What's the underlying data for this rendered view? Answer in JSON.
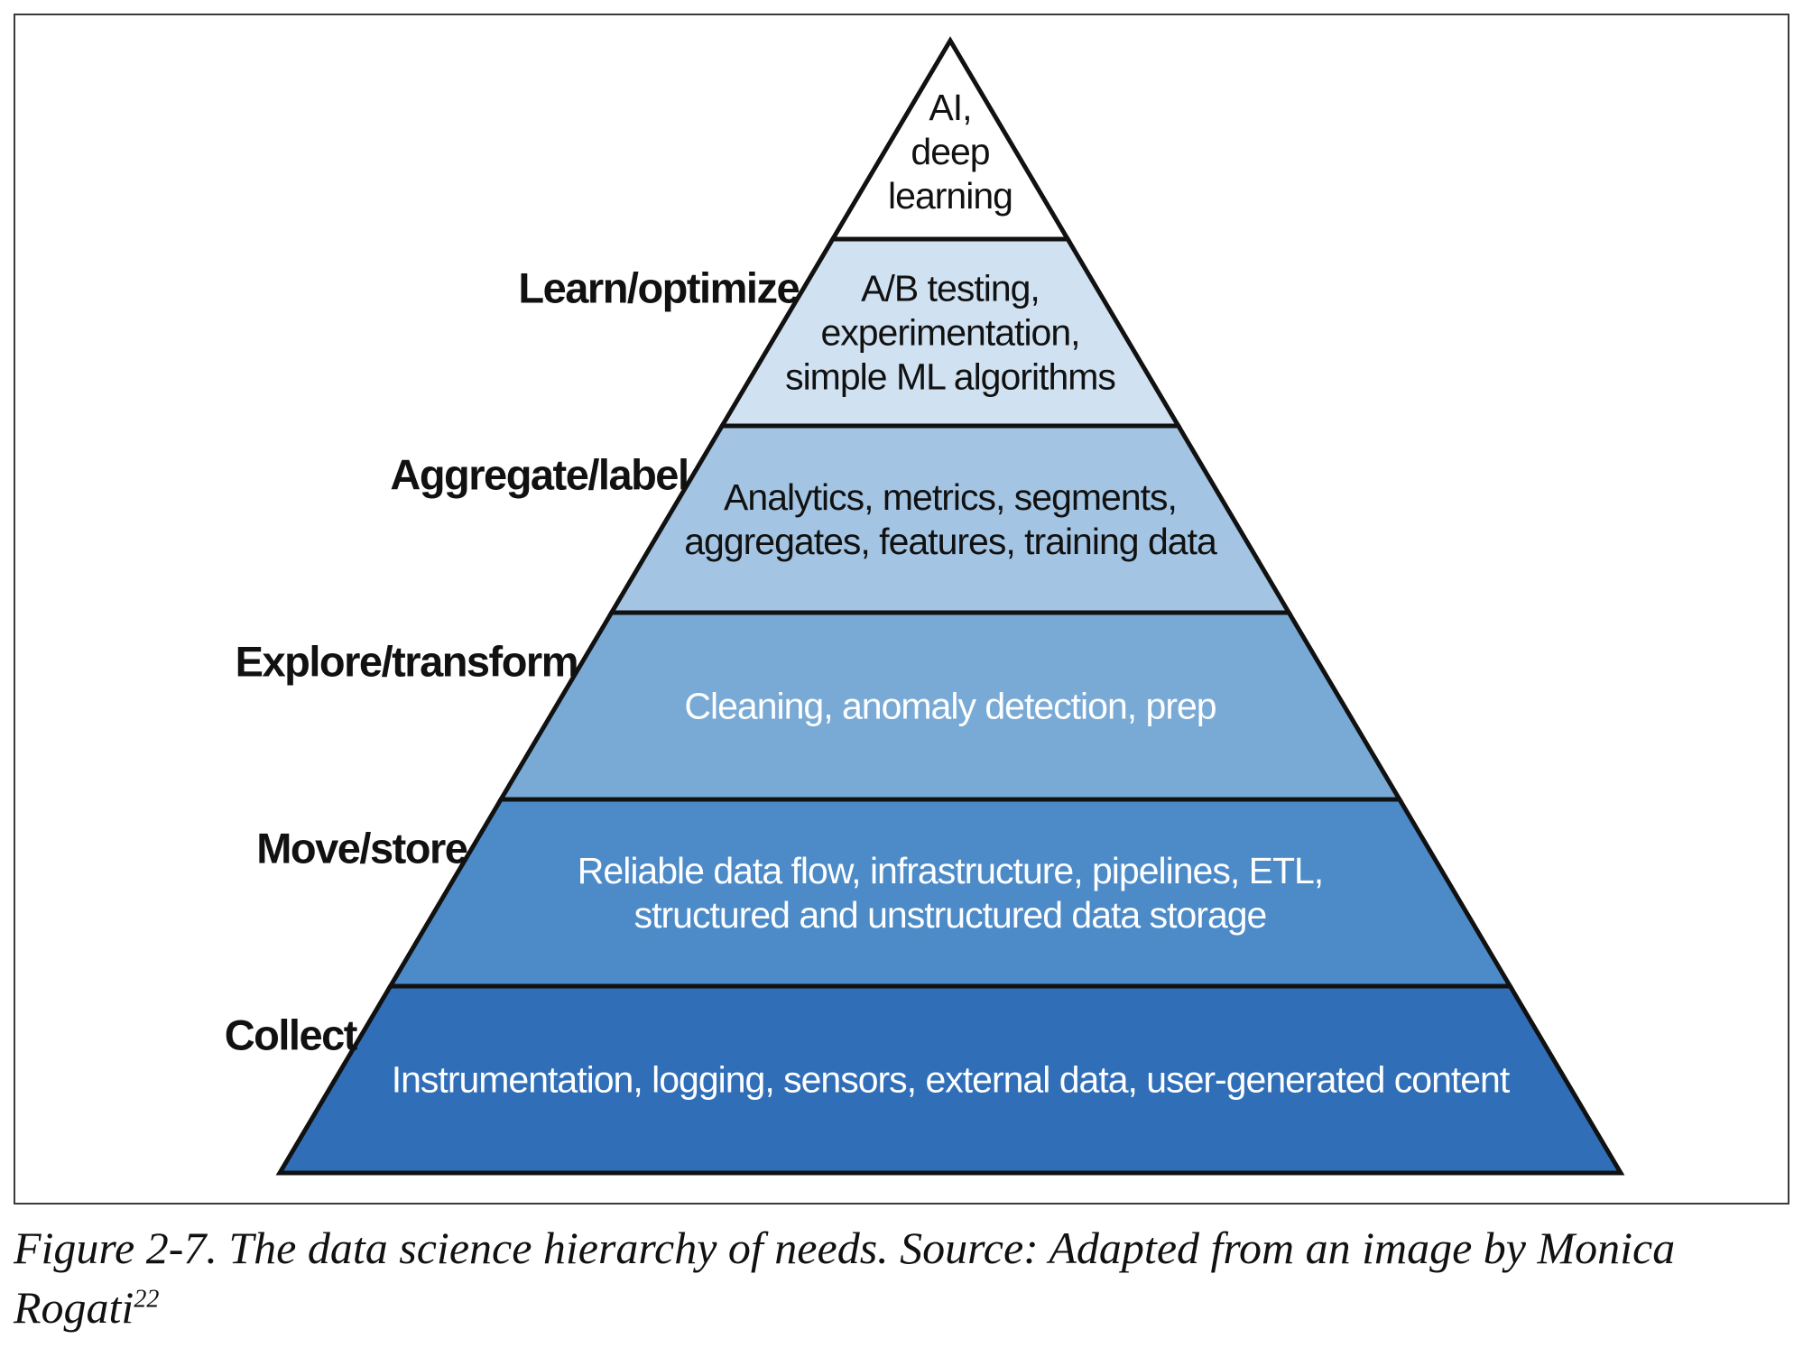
{
  "colors": {
    "tier_1": "#ffffff",
    "tier_2": "#d0e1f1",
    "tier_3": "#a3c4e2",
    "tier_4": "#79aad6",
    "tier_5": "#4c8bc8",
    "tier_6": "#306fb8",
    "outline": "#111111",
    "dark_text": "#111111",
    "light_text": "#ffffff"
  },
  "tiers": [
    {
      "lines": [
        "AI,",
        "deep",
        "learning"
      ]
    },
    {
      "lines": [
        "A/B testing,",
        "experimentation,",
        "simple ML algorithms"
      ]
    },
    {
      "lines": [
        "Analytics, metrics, segments,",
        "aggregates, features, training data"
      ]
    },
    {
      "lines": [
        "Cleaning, anomaly detection, prep"
      ]
    },
    {
      "lines": [
        "Reliable data flow, infrastructure, pipelines, ETL,",
        "structured and unstructured data storage"
      ]
    },
    {
      "lines": [
        "Instrumentation, logging, sensors, external data, user-generated content"
      ]
    }
  ],
  "side_labels": [
    "Learn/optimize",
    "Aggregate/label",
    "Explore/transform",
    "Move/store",
    "Collect"
  ],
  "caption": {
    "text": "Figure 2-7. The data science hierarchy of needs. Source: Adapted from an image by Monica Rogati",
    "footnote": "22"
  }
}
